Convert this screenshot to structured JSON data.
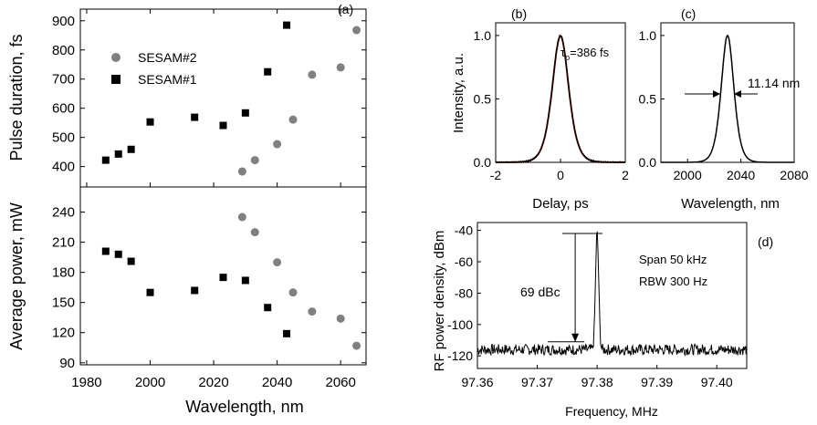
{
  "chart_data": [
    {
      "panel": "(a)",
      "type": "scatter",
      "subplots": [
        {
          "ylabel": "Pulse duration, fs",
          "ylim": [
            330,
            940
          ],
          "yticks": [
            400,
            500,
            600,
            700,
            800,
            900
          ],
          "series": [
            {
              "name": "SESAM#2",
              "marker": "circle",
              "color": "#808080",
              "x": [
                2029,
                2033,
                2040,
                2045,
                2051,
                2060,
                2065
              ],
              "y": [
                383,
                422,
                477,
                561,
                715,
                740,
                868
              ]
            },
            {
              "name": "SESAM#1",
              "marker": "square",
              "color": "#000000",
              "x": [
                1986,
                1990,
                1994,
                2000,
                2014,
                2023,
                2030,
                2037,
                2043
              ],
              "y": [
                422,
                443,
                459,
                553,
                569,
                541,
                584,
                725,
                885
              ]
            }
          ]
        },
        {
          "ylabel": "Average power, mW",
          "ylim": [
            88,
            265
          ],
          "yticks": [
            90,
            120,
            150,
            180,
            210,
            240
          ],
          "series": [
            {
              "name": "SESAM#2",
              "marker": "circle",
              "color": "#808080",
              "x": [
                2029,
                2033,
                2040,
                2045,
                2051,
                2060,
                2065
              ],
              "y": [
                235,
                220,
                190,
                160,
                141,
                134,
                107
              ]
            },
            {
              "name": "SESAM#1",
              "marker": "square",
              "color": "#000000",
              "x": [
                1986,
                1990,
                1994,
                2000,
                2014,
                2023,
                2030,
                2037,
                2043
              ],
              "y": [
                201,
                198,
                191,
                160,
                162,
                175,
                172,
                145,
                119
              ]
            }
          ]
        }
      ],
      "xlabel": "Wavelength, nm",
      "xlim": [
        1978,
        2068
      ],
      "xticks": [
        1980,
        2000,
        2020,
        2040,
        2060
      ],
      "legend_placement": "upper-left"
    },
    {
      "panel": "(b)",
      "type": "line",
      "xlabel": "Delay, ps",
      "ylabel": "Intensity, a.u.",
      "xlim": [
        -2,
        2
      ],
      "ylim": [
        0,
        1.1
      ],
      "xticks": [
        -2,
        0,
        2
      ],
      "yticks": [
        0.0,
        0.5,
        1.0
      ],
      "ytick_labels": [
        "0.0",
        "0.5",
        "1.0"
      ],
      "fwhm_ps": 0.595,
      "series": [
        {
          "name": "",
          "color": "#000000",
          "shape": "sech2"
        },
        {
          "name": "",
          "color": "#c0392b",
          "shape": "sech2-fit"
        }
      ],
      "annotation_tau": "τ",
      "annotation_sub": "p",
      "annotation_value": "=386 fs"
    },
    {
      "panel": "(c)",
      "type": "line",
      "xlabel": "Wavelength, nm",
      "xlim": [
        1980,
        2080
      ],
      "ylim": [
        0,
        1.1
      ],
      "xticks": [
        2000,
        2040,
        2080
      ],
      "yticks": [
        0.0,
        0.5,
        1.0
      ],
      "ytick_labels": [
        "0.0",
        "0.5",
        "1.0"
      ],
      "center_nm": 2030,
      "fwhm_nm": 11.14,
      "series": [
        {
          "name": "",
          "color": "#000000",
          "shape": "sech2"
        }
      ],
      "annotation": "11.14 nm"
    },
    {
      "panel": "(d)",
      "type": "line",
      "xlabel": "Frequency, MHz",
      "ylabel": "RF power density, dBm",
      "xlim": [
        97.36,
        97.405
      ],
      "ylim": [
        -128,
        -35
      ],
      "xticks": [
        97.36,
        97.37,
        97.38,
        97.39,
        97.4
      ],
      "xtick_labels": [
        "97.36",
        "97.37",
        "97.38",
        "97.39",
        "97.40"
      ],
      "yticks": [
        -120,
        -100,
        -80,
        -60,
        -40
      ],
      "peak_freq_mhz": 97.38,
      "peak_dbm": -42,
      "noise_floor_dbm": -116,
      "series": [
        {
          "name": "",
          "color": "#000000",
          "shape": "rf-spectrum"
        }
      ],
      "annotation_dbc": "69 dBc",
      "annotation_span": "Span 50 kHz",
      "annotation_rbw": "RBW 300 Hz"
    }
  ]
}
